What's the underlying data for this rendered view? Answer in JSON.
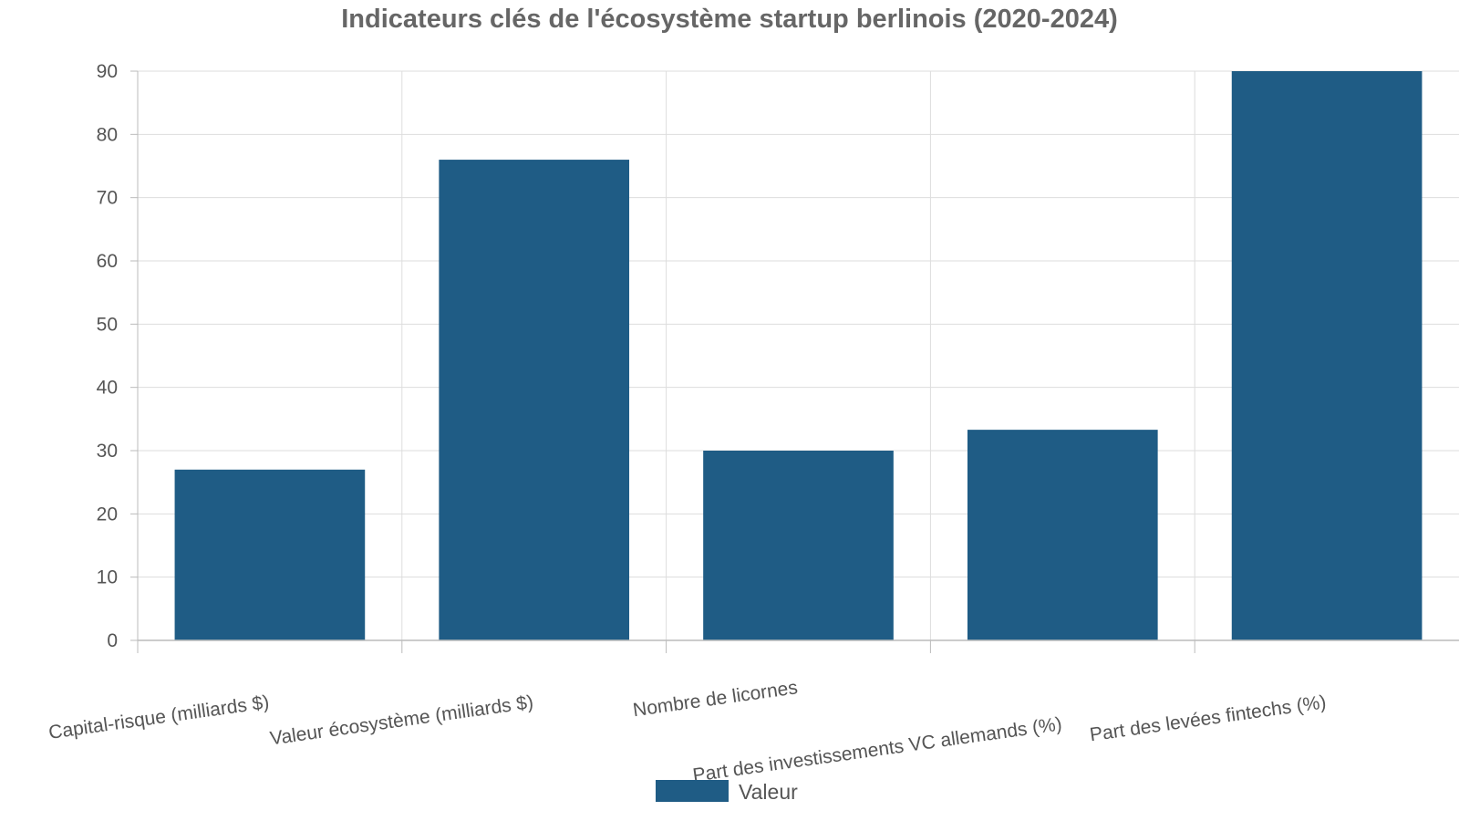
{
  "chart_data": {
    "type": "bar",
    "title": "Indicateurs clés de l'écosystème startup berlinois (2020-2024)",
    "xlabel": "",
    "ylabel": "",
    "categories": [
      "Capital-risque (milliards $)",
      "Valeur écosystème (milliards $)",
      "Nombre de licornes",
      "Part des investissements VC allemands (%)",
      "Part des levées fintechs (%)"
    ],
    "series": [
      {
        "name": "Valeur",
        "values": [
          27,
          76,
          30,
          33.3,
          90
        ],
        "color": "#1f5c85"
      }
    ],
    "ylim": [
      0,
      90
    ],
    "yticks": [
      0,
      10,
      20,
      30,
      40,
      50,
      60,
      70,
      80,
      90
    ],
    "grid": true,
    "legend": "bottom-center",
    "colors": {
      "bar": "#1f5c85",
      "grid": "#dddddd",
      "axis": "#bbbbbb",
      "text": "#555555",
      "title": "#666666"
    }
  }
}
